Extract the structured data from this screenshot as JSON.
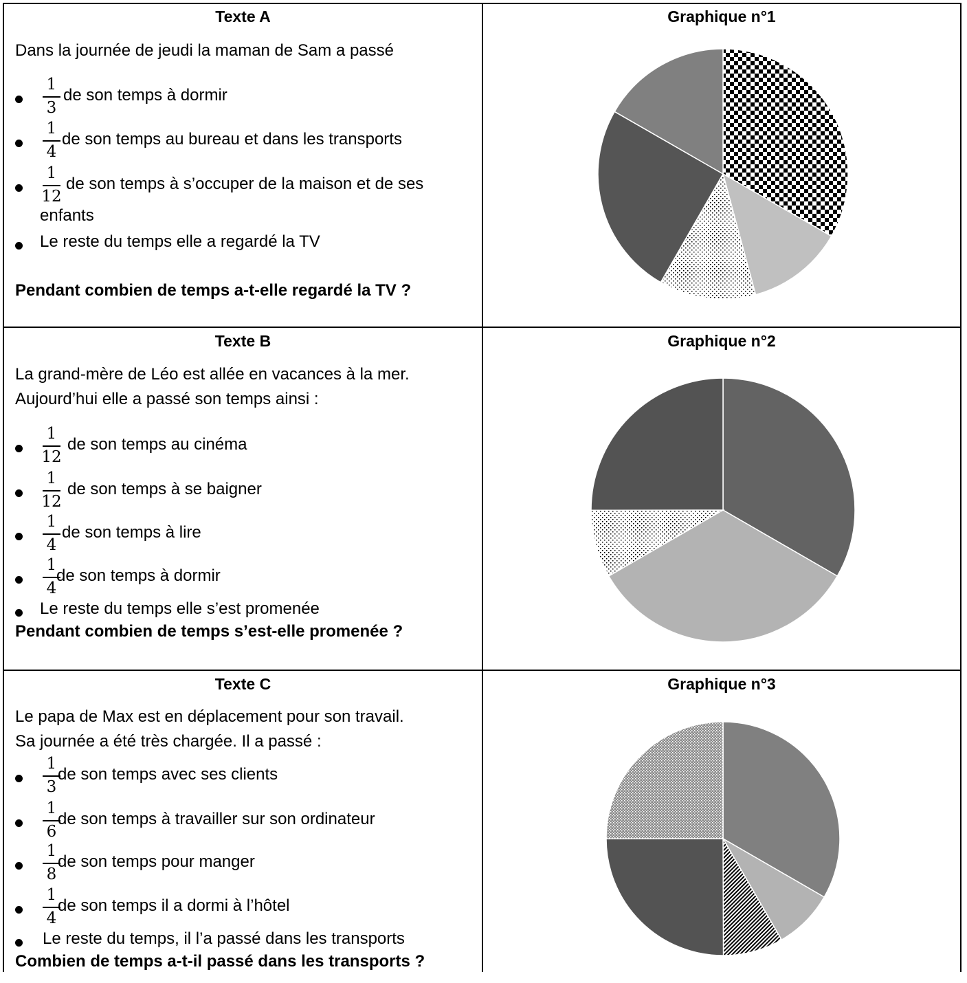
{
  "rows": [
    {
      "text_heading": "Texte A",
      "intro": [
        "Dans la journée de jeudi la maman de Sam a passé"
      ],
      "items": [
        {
          "num": "1",
          "den": "3",
          "text": "de son temps à dormir"
        },
        {
          "num": "1",
          "den": "4",
          "text": "de son temps au bureau et dans les transports"
        },
        {
          "num": "1",
          "den": "12",
          "text": "de son temps à s’occuper de la maison et de ses",
          "continuation": "enfants"
        }
      ],
      "rest": "Le reste du temps elle a regardé la TV",
      "question": "Pendant combien de temps a-t-elle regardé la TV ?",
      "chart_heading": "Graphique n°1"
    },
    {
      "text_heading": "Texte B",
      "intro": [
        "La grand-mère de Léo est allée en vacances à la mer.",
        "Aujourd’hui elle a passé son temps ainsi :"
      ],
      "items": [
        {
          "num": "1",
          "den": "12",
          "text": "de son temps au cinéma"
        },
        {
          "num": "1",
          "den": "12",
          "text": "de son temps à se baigner"
        },
        {
          "num": "1",
          "den": "4",
          "text": "de son temps à lire"
        },
        {
          "num": "1",
          "den": "4",
          "text": "de son temps à dormir"
        }
      ],
      "rest": "Le reste du temps elle s’est promenée",
      "question": "Pendant combien de temps s’est-elle promenée ?",
      "chart_heading": "Graphique n°2"
    },
    {
      "text_heading": "Texte C",
      "intro": [
        "Le papa de Max est en déplacement pour son travail.",
        "Sa journée a été très chargée. Il a passé :"
      ],
      "items": [
        {
          "num": "1",
          "den": "3",
          "text": "de son temps avec ses clients"
        },
        {
          "num": "1",
          "den": "6",
          "text": "de son temps à travailler sur son ordinateur"
        },
        {
          "num": "1",
          "den": "8",
          "text": "de son temps pour manger"
        },
        {
          "num": "1",
          "den": "4",
          "text": "de son temps il a dormi à l’hôtel"
        }
      ],
      "rest": "Le reste du temps, il l’a passé dans les transports",
      "question": "Combien de temps a-t-il passé dans les transports ?",
      "chart_heading": "Graphique n°3"
    }
  ],
  "chart_data": [
    {
      "type": "pie",
      "title": "Graphique n°1",
      "start": "top, clockwise",
      "values": [
        0.333,
        0.125,
        0.125,
        0.25,
        0.167
      ],
      "fills": [
        "checker",
        "#c0c0c0",
        "dots",
        "#555555",
        "#808080"
      ]
    },
    {
      "type": "pie",
      "title": "Graphique n°2",
      "start": "top, clockwise",
      "values": [
        0.333,
        0.333,
        0.083,
        0.25
      ],
      "fills": [
        "#636363",
        "#b3b3b3",
        "dots",
        "#535353"
      ]
    },
    {
      "type": "pie",
      "title": "Graphique n°3",
      "start": "top, clockwise",
      "values": [
        0.333,
        0.083,
        0.083,
        0.25,
        0.25
      ],
      "fills": [
        "#808080",
        "#b3b3b3",
        "hatch",
        "#535353",
        "speckle"
      ]
    }
  ]
}
